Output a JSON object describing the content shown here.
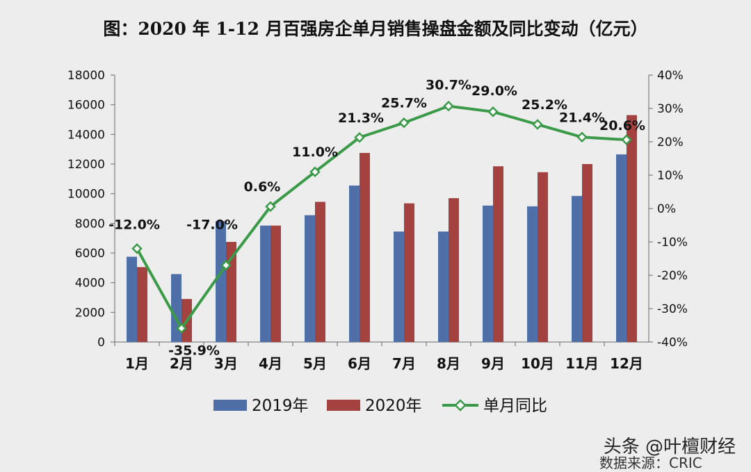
{
  "chart_data": {
    "type": "bar",
    "title": "图：2020 年 1-12 月百强房企单月销售操盘金额及同比变动（亿元）",
    "categories": [
      "1月",
      "2月",
      "3月",
      "4月",
      "5月",
      "6月",
      "7月",
      "8月",
      "9月",
      "10月",
      "11月",
      "12月"
    ],
    "series": [
      {
        "name": "2019年",
        "type": "bar",
        "axis": "left",
        "color": "#4f6fa8",
        "values": [
          5750,
          4580,
          8150,
          7850,
          8550,
          10550,
          7450,
          7450,
          9200,
          9150,
          9850,
          12650
        ]
      },
      {
        "name": "2020年",
        "type": "bar",
        "axis": "left",
        "color": "#a3423f",
        "values": [
          5050,
          2900,
          6750,
          7850,
          9450,
          12750,
          9350,
          9700,
          11850,
          11450,
          12000,
          15300
        ]
      },
      {
        "name": "单月同比",
        "type": "line",
        "axis": "right",
        "color": "#3a9a48",
        "unit": "%",
        "values": [
          -12.0,
          -35.9,
          -17.0,
          0.6,
          11.0,
          21.3,
          25.7,
          30.7,
          29.0,
          25.2,
          21.4,
          20.6
        ],
        "labels": [
          "-12.0%",
          "-35.9%",
          "-17.0%",
          "0.6%",
          "11.0%",
          "21.3%",
          "25.7%",
          "30.7%",
          "29.0%",
          "25.2%",
          "21.4%",
          "20.6%"
        ]
      }
    ],
    "y_left": {
      "min": 0,
      "max": 18000,
      "ticks": [
        0,
        2000,
        4000,
        6000,
        8000,
        10000,
        12000,
        14000,
        16000,
        18000
      ]
    },
    "y_right": {
      "min": -40,
      "max": 40,
      "ticks": [
        "-40%",
        "-30%",
        "-20%",
        "-10%",
        "0%",
        "10%",
        "20%",
        "30%",
        "40%"
      ],
      "tick_values": [
        -40,
        -30,
        -20,
        -10,
        0,
        10,
        20,
        30,
        40
      ]
    },
    "grid": false,
    "legend_position": "bottom"
  },
  "watermark": "头条 @叶檀财经",
  "source": "数据来源：CRIC"
}
